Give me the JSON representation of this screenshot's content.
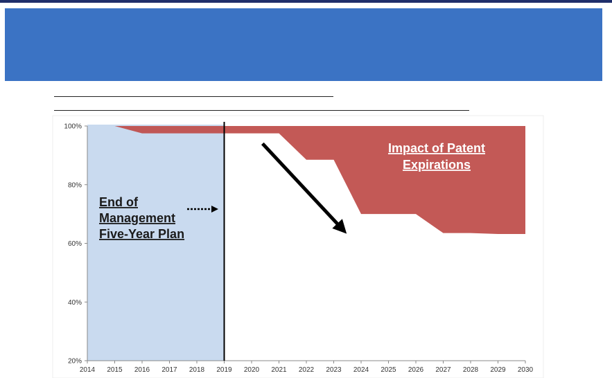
{
  "chart_data": {
    "type": "area",
    "title": "",
    "xlabel": "",
    "ylabel": "",
    "x": [
      2014,
      2015,
      2016,
      2017,
      2018,
      2019,
      2020,
      2021,
      2022,
      2023,
      2024,
      2025,
      2026,
      2027,
      2028,
      2029,
      2030
    ],
    "xlim": [
      2014,
      2030
    ],
    "ylim": [
      20,
      100
    ],
    "x_tick_labels": [
      "2014",
      "2015",
      "2016",
      "2017",
      "2018",
      "2019",
      "2020",
      "2021",
      "2022",
      "2023",
      "2024",
      "2025",
      "2026",
      "2027",
      "2028",
      "2029",
      "2030"
    ],
    "y_ticks": [
      20,
      40,
      60,
      80,
      100
    ],
    "y_tick_labels": [
      "20%",
      "40%",
      "60%",
      "80%",
      "100%"
    ],
    "series": [
      {
        "values": [
          100,
          100,
          97.5,
          97.5,
          97.5,
          97.5,
          97.5,
          97.5,
          88.5,
          88.5,
          70,
          70,
          70,
          63.5,
          63.5,
          63.2,
          63.2
        ],
        "color": "#c0504d"
      }
    ],
    "baseline": 100,
    "shaded_region": {
      "x_start": 2014,
      "x_end": 2019,
      "color": "#c9daef"
    },
    "vertical_line_x": 2019,
    "grid": false,
    "legend": "none",
    "annotations": {
      "patent_line1": "Impact of Patent",
      "patent_line2": "Expirations",
      "plan_line1": "End of",
      "plan_line2": "Management",
      "plan_line3": "Five-Year Plan"
    },
    "arrow": {
      "from": [
        2020.4,
        94
      ],
      "to": [
        2023.3,
        65
      ]
    },
    "annotation_color": "#ffffff"
  }
}
